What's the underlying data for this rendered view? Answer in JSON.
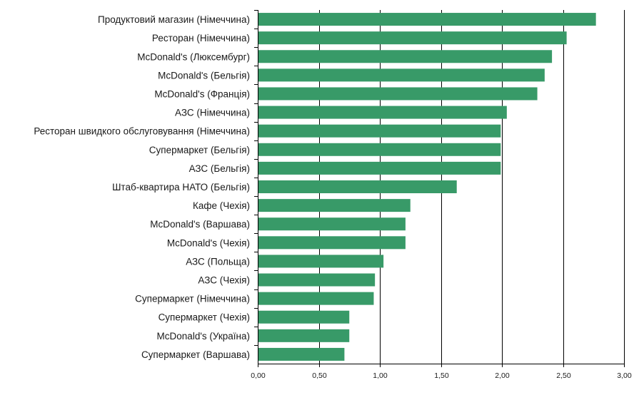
{
  "chart_data": {
    "type": "bar",
    "orientation": "horizontal",
    "categories": [
      "Продуктовий магазин (Німеччина)",
      "Ресторан (Німеччина)",
      "McDonald's (Люксембург)",
      "McDonald's (Бельгія)",
      "McDonald's (Франція)",
      "АЗС (Німеччина)",
      "Ресторан швидкого обслуговування (Німеччина)",
      "Супермаркет (Бельгія)",
      "АЗС (Бельгія)",
      "Штаб-квартира НАТО (Бельгія)",
      "Кафе (Чехія)",
      "McDonald's (Варшава)",
      "McDonald's (Чехія)",
      "АЗС (Польща)",
      "АЗС (Чехія)",
      "Супермаркет (Німеччина)",
      "Супермаркет (Чехія)",
      "McDonald's (Україна)",
      "Супермаркет (Варшава)"
    ],
    "values": [
      2.77,
      2.53,
      2.41,
      2.35,
      2.29,
      2.04,
      1.99,
      1.99,
      1.99,
      1.63,
      1.25,
      1.21,
      1.21,
      1.03,
      0.96,
      0.95,
      0.75,
      0.75,
      0.71
    ],
    "xlim": [
      0,
      3.0
    ],
    "ticks": [
      "0,00",
      "0,50",
      "1,00",
      "1,50",
      "2,00",
      "2,50",
      "3,00"
    ],
    "tick_values": [
      0,
      0.5,
      1.0,
      1.5,
      2.0,
      2.5,
      3.0
    ],
    "grid": "vertical",
    "bar_color": "#389a68",
    "title": "",
    "xlabel": "",
    "ylabel": ""
  }
}
